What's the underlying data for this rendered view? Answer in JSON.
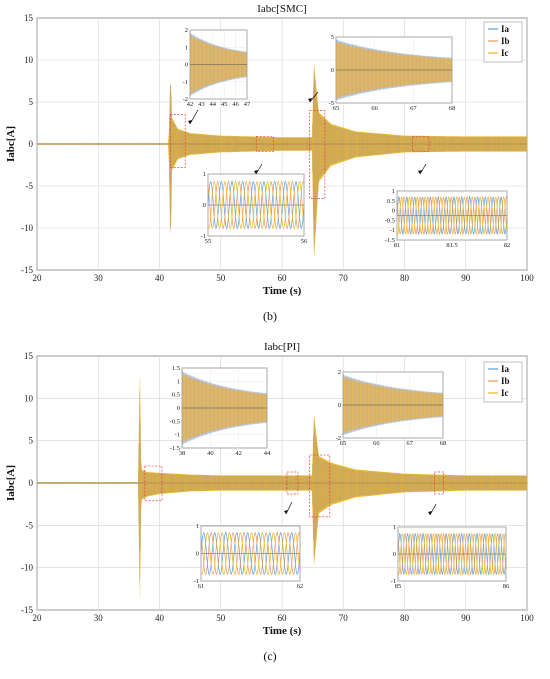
{
  "chart_data": [
    {
      "type": "line",
      "panel_label": "(b)",
      "title": "Iabc[SMC]",
      "xlabel": "Time (s)",
      "ylabel": "Iabc[A]",
      "xlim": [
        20,
        100
      ],
      "ylim": [
        -15,
        15
      ],
      "xticks": [
        20,
        30,
        40,
        50,
        60,
        70,
        80,
        90,
        100
      ],
      "yticks": [
        15,
        10,
        5,
        0,
        -5,
        -10,
        -15
      ],
      "grid": true,
      "legend": "top-right",
      "series": [
        {
          "name": "Ia",
          "color": "#5b9bd5"
        },
        {
          "name": "Ib",
          "color": "#e89a5a"
        },
        {
          "name": "Ic",
          "color": "#f0b323"
        }
      ],
      "envelope": {
        "t": [
          20,
          41.5,
          41.8,
          42,
          43,
          45,
          50,
          55,
          60,
          64.9,
          65.2,
          66,
          68,
          72,
          80,
          90,
          100
        ],
        "upper": [
          0.1,
          0.1,
          9.5,
          3.2,
          1.8,
          1.3,
          1.0,
          0.9,
          0.8,
          0.8,
          9.8,
          3.8,
          2.4,
          1.5,
          1.0,
          0.9,
          0.9
        ],
        "lower": [
          -0.1,
          -0.1,
          -14,
          -3.2,
          -1.8,
          -1.3,
          -1.0,
          -0.9,
          -0.8,
          -0.8,
          -14,
          -4.5,
          -2.6,
          -1.6,
          -1.0,
          -0.9,
          -0.9
        ]
      },
      "insets": [
        {
          "xticks": [
            "42",
            "43",
            "44",
            "45",
            "46",
            "47"
          ],
          "yticks": [
            "2",
            "1",
            "0",
            "-1",
            "-2"
          ]
        },
        {
          "xticks": [
            "65",
            "66",
            "67",
            "68"
          ],
          "yticks": [
            "5",
            "0",
            "-5"
          ]
        },
        {
          "xticks": [
            "55",
            "56"
          ],
          "yticks": [
            "1",
            "0",
            "-1"
          ]
        },
        {
          "xticks": [
            "81",
            "81.5",
            "82"
          ],
          "yticks": [
            "1",
            "0.5",
            "0",
            "-0.5",
            "-1",
            "-1.5"
          ]
        }
      ]
    },
    {
      "type": "line",
      "panel_label": "(c)",
      "title": "Iabc[PI]",
      "xlabel": "Time (s)",
      "ylabel": "Iabc[A]",
      "xlim": [
        20,
        100
      ],
      "ylim": [
        -15,
        15
      ],
      "xticks": [
        20,
        30,
        40,
        50,
        60,
        70,
        80,
        90,
        100
      ],
      "yticks": [
        15,
        10,
        5,
        0,
        -5,
        -10,
        -15
      ],
      "grid": true,
      "legend": "top-right",
      "series": [
        {
          "name": "Ia",
          "color": "#5b9bd5"
        },
        {
          "name": "Ib",
          "color": "#e89a5a"
        },
        {
          "name": "Ic",
          "color": "#f0b323"
        }
      ],
      "envelope": {
        "t": [
          20,
          36.5,
          36.8,
          37,
          38,
          40,
          45,
          50,
          55,
          60,
          64.9,
          65.2,
          66,
          68,
          72,
          80,
          90,
          100
        ],
        "upper": [
          0.1,
          0.1,
          14,
          1.6,
          1.3,
          1.2,
          1.0,
          0.9,
          0.9,
          0.9,
          0.9,
          8.3,
          3.2,
          2.4,
          1.6,
          1.1,
          0.9,
          0.9
        ],
        "lower": [
          -0.1,
          -0.1,
          -15,
          -2.0,
          -1.6,
          -1.3,
          -1.0,
          -0.9,
          -0.9,
          -0.9,
          -0.9,
          -10,
          -3.6,
          -2.6,
          -1.7,
          -1.1,
          -0.9,
          -0.9
        ]
      },
      "insets": [
        {
          "xticks": [
            "38",
            "40",
            "42",
            "44"
          ],
          "yticks": [
            "1.5",
            "1",
            "0.5",
            "0",
            "-0.5",
            "-1",
            "-1.5"
          ]
        },
        {
          "xticks": [
            "65",
            "66",
            "67",
            "68"
          ],
          "yticks": [
            "2",
            "0",
            "-2"
          ]
        },
        {
          "xticks": [
            "61",
            "62"
          ],
          "yticks": [
            "1",
            "0",
            "-1"
          ]
        },
        {
          "xticks": [
            "85",
            "86"
          ],
          "yticks": [
            "1",
            "0",
            "-1"
          ]
        }
      ]
    }
  ]
}
